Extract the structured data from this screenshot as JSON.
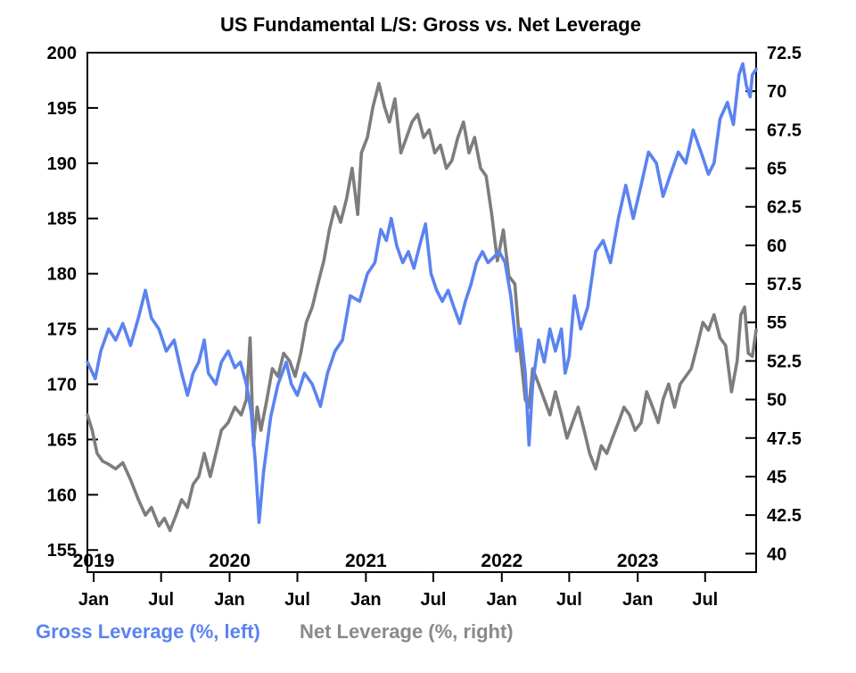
{
  "chart_data": {
    "type": "line",
    "title": "US Fundamental L/S: Gross vs. Net Leverage",
    "x_range": [
      "2018-12-15",
      "2023-11-15"
    ],
    "left_axis": {
      "label": "Gross Leverage (%, left)",
      "ylim": [
        153,
        200
      ],
      "ticks": [
        "200",
        "195",
        "190",
        "185",
        "180",
        "175",
        "170",
        "165",
        "160",
        "155"
      ]
    },
    "right_axis": {
      "label": "Net Leverage (%, right)",
      "ylim": [
        38.8,
        72.5
      ],
      "ticks": [
        "72.5",
        "70",
        "67.5",
        "65",
        "62.5",
        "60",
        "57.5",
        "55",
        "52.5",
        "50",
        "47.5",
        "45",
        "42.5",
        "40"
      ]
    },
    "month_ticks": [
      "Jan",
      "Jul",
      "Jan",
      "Jul",
      "Jan",
      "Jul",
      "Jan",
      "Jul",
      "Jan",
      "Jul"
    ],
    "year_labels": [
      "2019",
      "2020",
      "2021",
      "2022",
      "2023"
    ],
    "grid": false,
    "series": [
      {
        "name": "Gross Leverage (%, left)",
        "color": "#5b83f0",
        "axis": "left",
        "points": [
          [
            "2018-12-15",
            172
          ],
          [
            "2019-01-05",
            170.5
          ],
          [
            "2019-01-20",
            173
          ],
          [
            "2019-02-10",
            175
          ],
          [
            "2019-03-01",
            174
          ],
          [
            "2019-03-20",
            175.5
          ],
          [
            "2019-04-10",
            173.5
          ],
          [
            "2019-05-01",
            176
          ],
          [
            "2019-05-20",
            178.5
          ],
          [
            "2019-06-05",
            176
          ],
          [
            "2019-06-25",
            175
          ],
          [
            "2019-07-15",
            173
          ],
          [
            "2019-08-05",
            174
          ],
          [
            "2019-08-25",
            171
          ],
          [
            "2019-09-10",
            169
          ],
          [
            "2019-09-25",
            171
          ],
          [
            "2019-10-10",
            172
          ],
          [
            "2019-10-25",
            174
          ],
          [
            "2019-11-05",
            171
          ],
          [
            "2019-11-25",
            170
          ],
          [
            "2019-12-10",
            172
          ],
          [
            "2019-12-28",
            173
          ],
          [
            "2020-01-15",
            171.5
          ],
          [
            "2020-01-30",
            172
          ],
          [
            "2020-02-15",
            170
          ],
          [
            "2020-02-28",
            167.5
          ],
          [
            "2020-03-10",
            163
          ],
          [
            "2020-03-20",
            157.5
          ],
          [
            "2020-04-01",
            162
          ],
          [
            "2020-04-20",
            167
          ],
          [
            "2020-05-10",
            170
          ],
          [
            "2020-06-01",
            172
          ],
          [
            "2020-06-15",
            170
          ],
          [
            "2020-07-01",
            169
          ],
          [
            "2020-07-20",
            171
          ],
          [
            "2020-08-10",
            170
          ],
          [
            "2020-09-01",
            168
          ],
          [
            "2020-09-20",
            171
          ],
          [
            "2020-10-10",
            173
          ],
          [
            "2020-10-30",
            174
          ],
          [
            "2020-11-20",
            178
          ],
          [
            "2020-12-15",
            177.5
          ],
          [
            "2021-01-05",
            180
          ],
          [
            "2021-01-25",
            181
          ],
          [
            "2021-02-10",
            184
          ],
          [
            "2021-02-25",
            183
          ],
          [
            "2021-03-10",
            185
          ],
          [
            "2021-03-25",
            182.5
          ],
          [
            "2021-04-10",
            181
          ],
          [
            "2021-04-25",
            182
          ],
          [
            "2021-05-10",
            180.5
          ],
          [
            "2021-05-25",
            182.5
          ],
          [
            "2021-06-10",
            184.5
          ],
          [
            "2021-06-25",
            180
          ],
          [
            "2021-07-10",
            178.5
          ],
          [
            "2021-07-25",
            177.5
          ],
          [
            "2021-08-10",
            178.5
          ],
          [
            "2021-08-25",
            177
          ],
          [
            "2021-09-10",
            175.5
          ],
          [
            "2021-09-25",
            177.5
          ],
          [
            "2021-10-10",
            179
          ],
          [
            "2021-10-25",
            181
          ],
          [
            "2021-11-10",
            182
          ],
          [
            "2021-11-25",
            181
          ],
          [
            "2021-12-10",
            181.5
          ],
          [
            "2021-12-25",
            182
          ],
          [
            "2022-01-10",
            181
          ],
          [
            "2022-01-25",
            178
          ],
          [
            "2022-02-10",
            173
          ],
          [
            "2022-02-20",
            175
          ],
          [
            "2022-03-05",
            171
          ],
          [
            "2022-03-15",
            164.5
          ],
          [
            "2022-03-25",
            170
          ],
          [
            "2022-04-10",
            174
          ],
          [
            "2022-04-25",
            172
          ],
          [
            "2022-05-10",
            175
          ],
          [
            "2022-05-25",
            173
          ],
          [
            "2022-06-10",
            175
          ],
          [
            "2022-06-20",
            171
          ],
          [
            "2022-07-01",
            172.5
          ],
          [
            "2022-07-15",
            178
          ],
          [
            "2022-08-01",
            175
          ],
          [
            "2022-08-20",
            177
          ],
          [
            "2022-09-10",
            182
          ],
          [
            "2022-09-30",
            183
          ],
          [
            "2022-10-20",
            181
          ],
          [
            "2022-11-10",
            185
          ],
          [
            "2022-11-30",
            188
          ],
          [
            "2022-12-20",
            185
          ],
          [
            "2023-01-10",
            188
          ],
          [
            "2023-01-30",
            191
          ],
          [
            "2023-02-20",
            190
          ],
          [
            "2023-03-10",
            187
          ],
          [
            "2023-03-30",
            189
          ],
          [
            "2023-04-20",
            191
          ],
          [
            "2023-05-10",
            190
          ],
          [
            "2023-05-30",
            193
          ],
          [
            "2023-06-20",
            191
          ],
          [
            "2023-07-10",
            189
          ],
          [
            "2023-07-25",
            190
          ],
          [
            "2023-08-10",
            194
          ],
          [
            "2023-08-30",
            195.5
          ],
          [
            "2023-09-15",
            193.5
          ],
          [
            "2023-09-30",
            198
          ],
          [
            "2023-10-10",
            199
          ],
          [
            "2023-10-20",
            197
          ],
          [
            "2023-10-30",
            196
          ],
          [
            "2023-11-05",
            198
          ],
          [
            "2023-11-15",
            198.5
          ]
        ]
      },
      {
        "name": "Net Leverage (%, right)",
        "color": "#7d7d7d",
        "axis": "right",
        "points": [
          [
            "2018-12-15",
            49
          ],
          [
            "2018-12-28",
            48
          ],
          [
            "2019-01-10",
            46.5
          ],
          [
            "2019-01-25",
            46
          ],
          [
            "2019-02-10",
            45.8
          ],
          [
            "2019-03-01",
            45.5
          ],
          [
            "2019-03-20",
            45.9
          ],
          [
            "2019-04-10",
            44.8
          ],
          [
            "2019-05-01",
            43.5
          ],
          [
            "2019-05-20",
            42.5
          ],
          [
            "2019-06-05",
            43
          ],
          [
            "2019-06-25",
            41.8
          ],
          [
            "2019-07-10",
            42.3
          ],
          [
            "2019-07-25",
            41.5
          ],
          [
            "2019-08-10",
            42.5
          ],
          [
            "2019-08-25",
            43.5
          ],
          [
            "2019-09-10",
            43
          ],
          [
            "2019-09-25",
            44.5
          ],
          [
            "2019-10-10",
            45
          ],
          [
            "2019-10-25",
            46.5
          ],
          [
            "2019-11-10",
            45
          ],
          [
            "2019-11-25",
            46.5
          ],
          [
            "2019-12-10",
            48
          ],
          [
            "2019-12-28",
            48.5
          ],
          [
            "2020-01-15",
            49.5
          ],
          [
            "2020-02-01",
            49
          ],
          [
            "2020-02-15",
            50
          ],
          [
            "2020-02-25",
            54
          ],
          [
            "2020-03-05",
            47
          ],
          [
            "2020-03-15",
            49.5
          ],
          [
            "2020-03-25",
            48
          ],
          [
            "2020-04-10",
            50
          ],
          [
            "2020-04-25",
            52
          ],
          [
            "2020-05-10",
            51.5
          ],
          [
            "2020-05-25",
            53
          ],
          [
            "2020-06-10",
            52.5
          ],
          [
            "2020-06-25",
            51.5
          ],
          [
            "2020-07-10",
            53
          ],
          [
            "2020-07-25",
            55
          ],
          [
            "2020-08-10",
            56
          ],
          [
            "2020-08-25",
            57.5
          ],
          [
            "2020-09-10",
            59
          ],
          [
            "2020-09-25",
            61
          ],
          [
            "2020-10-10",
            62.5
          ],
          [
            "2020-10-25",
            61.5
          ],
          [
            "2020-11-10",
            63
          ],
          [
            "2020-11-25",
            65
          ],
          [
            "2020-12-10",
            62
          ],
          [
            "2020-12-20",
            66
          ],
          [
            "2021-01-05",
            67
          ],
          [
            "2021-01-20",
            69
          ],
          [
            "2021-02-05",
            70.5
          ],
          [
            "2021-02-20",
            69
          ],
          [
            "2021-03-05",
            68
          ],
          [
            "2021-03-20",
            69.5
          ],
          [
            "2021-04-05",
            66
          ],
          [
            "2021-04-20",
            67
          ],
          [
            "2021-05-05",
            68
          ],
          [
            "2021-05-20",
            68.5
          ],
          [
            "2021-06-05",
            67
          ],
          [
            "2021-06-20",
            67.5
          ],
          [
            "2021-07-05",
            66
          ],
          [
            "2021-07-20",
            66.5
          ],
          [
            "2021-08-05",
            65
          ],
          [
            "2021-08-20",
            65.5
          ],
          [
            "2021-09-05",
            67
          ],
          [
            "2021-09-20",
            68
          ],
          [
            "2021-10-05",
            66
          ],
          [
            "2021-10-20",
            67
          ],
          [
            "2021-11-05",
            65
          ],
          [
            "2021-11-20",
            64.5
          ],
          [
            "2021-12-05",
            62
          ],
          [
            "2021-12-20",
            59
          ],
          [
            "2022-01-05",
            61
          ],
          [
            "2022-01-20",
            58
          ],
          [
            "2022-02-05",
            57.5
          ],
          [
            "2022-02-20",
            53
          ],
          [
            "2022-03-05",
            50
          ],
          [
            "2022-03-15",
            49.5
          ],
          [
            "2022-03-25",
            52
          ],
          [
            "2022-04-10",
            51
          ],
          [
            "2022-04-25",
            50
          ],
          [
            "2022-05-10",
            49
          ],
          [
            "2022-05-25",
            50.5
          ],
          [
            "2022-06-10",
            49
          ],
          [
            "2022-06-25",
            47.5
          ],
          [
            "2022-07-10",
            48.5
          ],
          [
            "2022-07-25",
            49.5
          ],
          [
            "2022-08-10",
            48
          ],
          [
            "2022-08-25",
            46.5
          ],
          [
            "2022-09-10",
            45.5
          ],
          [
            "2022-09-25",
            47
          ],
          [
            "2022-10-10",
            46.5
          ],
          [
            "2022-10-25",
            47.5
          ],
          [
            "2022-11-10",
            48.5
          ],
          [
            "2022-11-25",
            49.5
          ],
          [
            "2022-12-10",
            49
          ],
          [
            "2022-12-25",
            48
          ],
          [
            "2023-01-10",
            48.5
          ],
          [
            "2023-01-25",
            50.5
          ],
          [
            "2023-02-10",
            49.5
          ],
          [
            "2023-02-25",
            48.5
          ],
          [
            "2023-03-10",
            50
          ],
          [
            "2023-03-25",
            51
          ],
          [
            "2023-04-10",
            49.5
          ],
          [
            "2023-04-25",
            51
          ],
          [
            "2023-05-10",
            51.5
          ],
          [
            "2023-05-25",
            52
          ],
          [
            "2023-06-10",
            53.5
          ],
          [
            "2023-06-25",
            55
          ],
          [
            "2023-07-10",
            54.5
          ],
          [
            "2023-07-25",
            55.5
          ],
          [
            "2023-08-10",
            54
          ],
          [
            "2023-08-25",
            53.5
          ],
          [
            "2023-09-10",
            50.5
          ],
          [
            "2023-09-25",
            52.5
          ],
          [
            "2023-10-05",
            55.5
          ],
          [
            "2023-10-15",
            56
          ],
          [
            "2023-10-25",
            53
          ],
          [
            "2023-11-05",
            52.8
          ],
          [
            "2023-11-15",
            54.5
          ]
        ]
      }
    ]
  }
}
